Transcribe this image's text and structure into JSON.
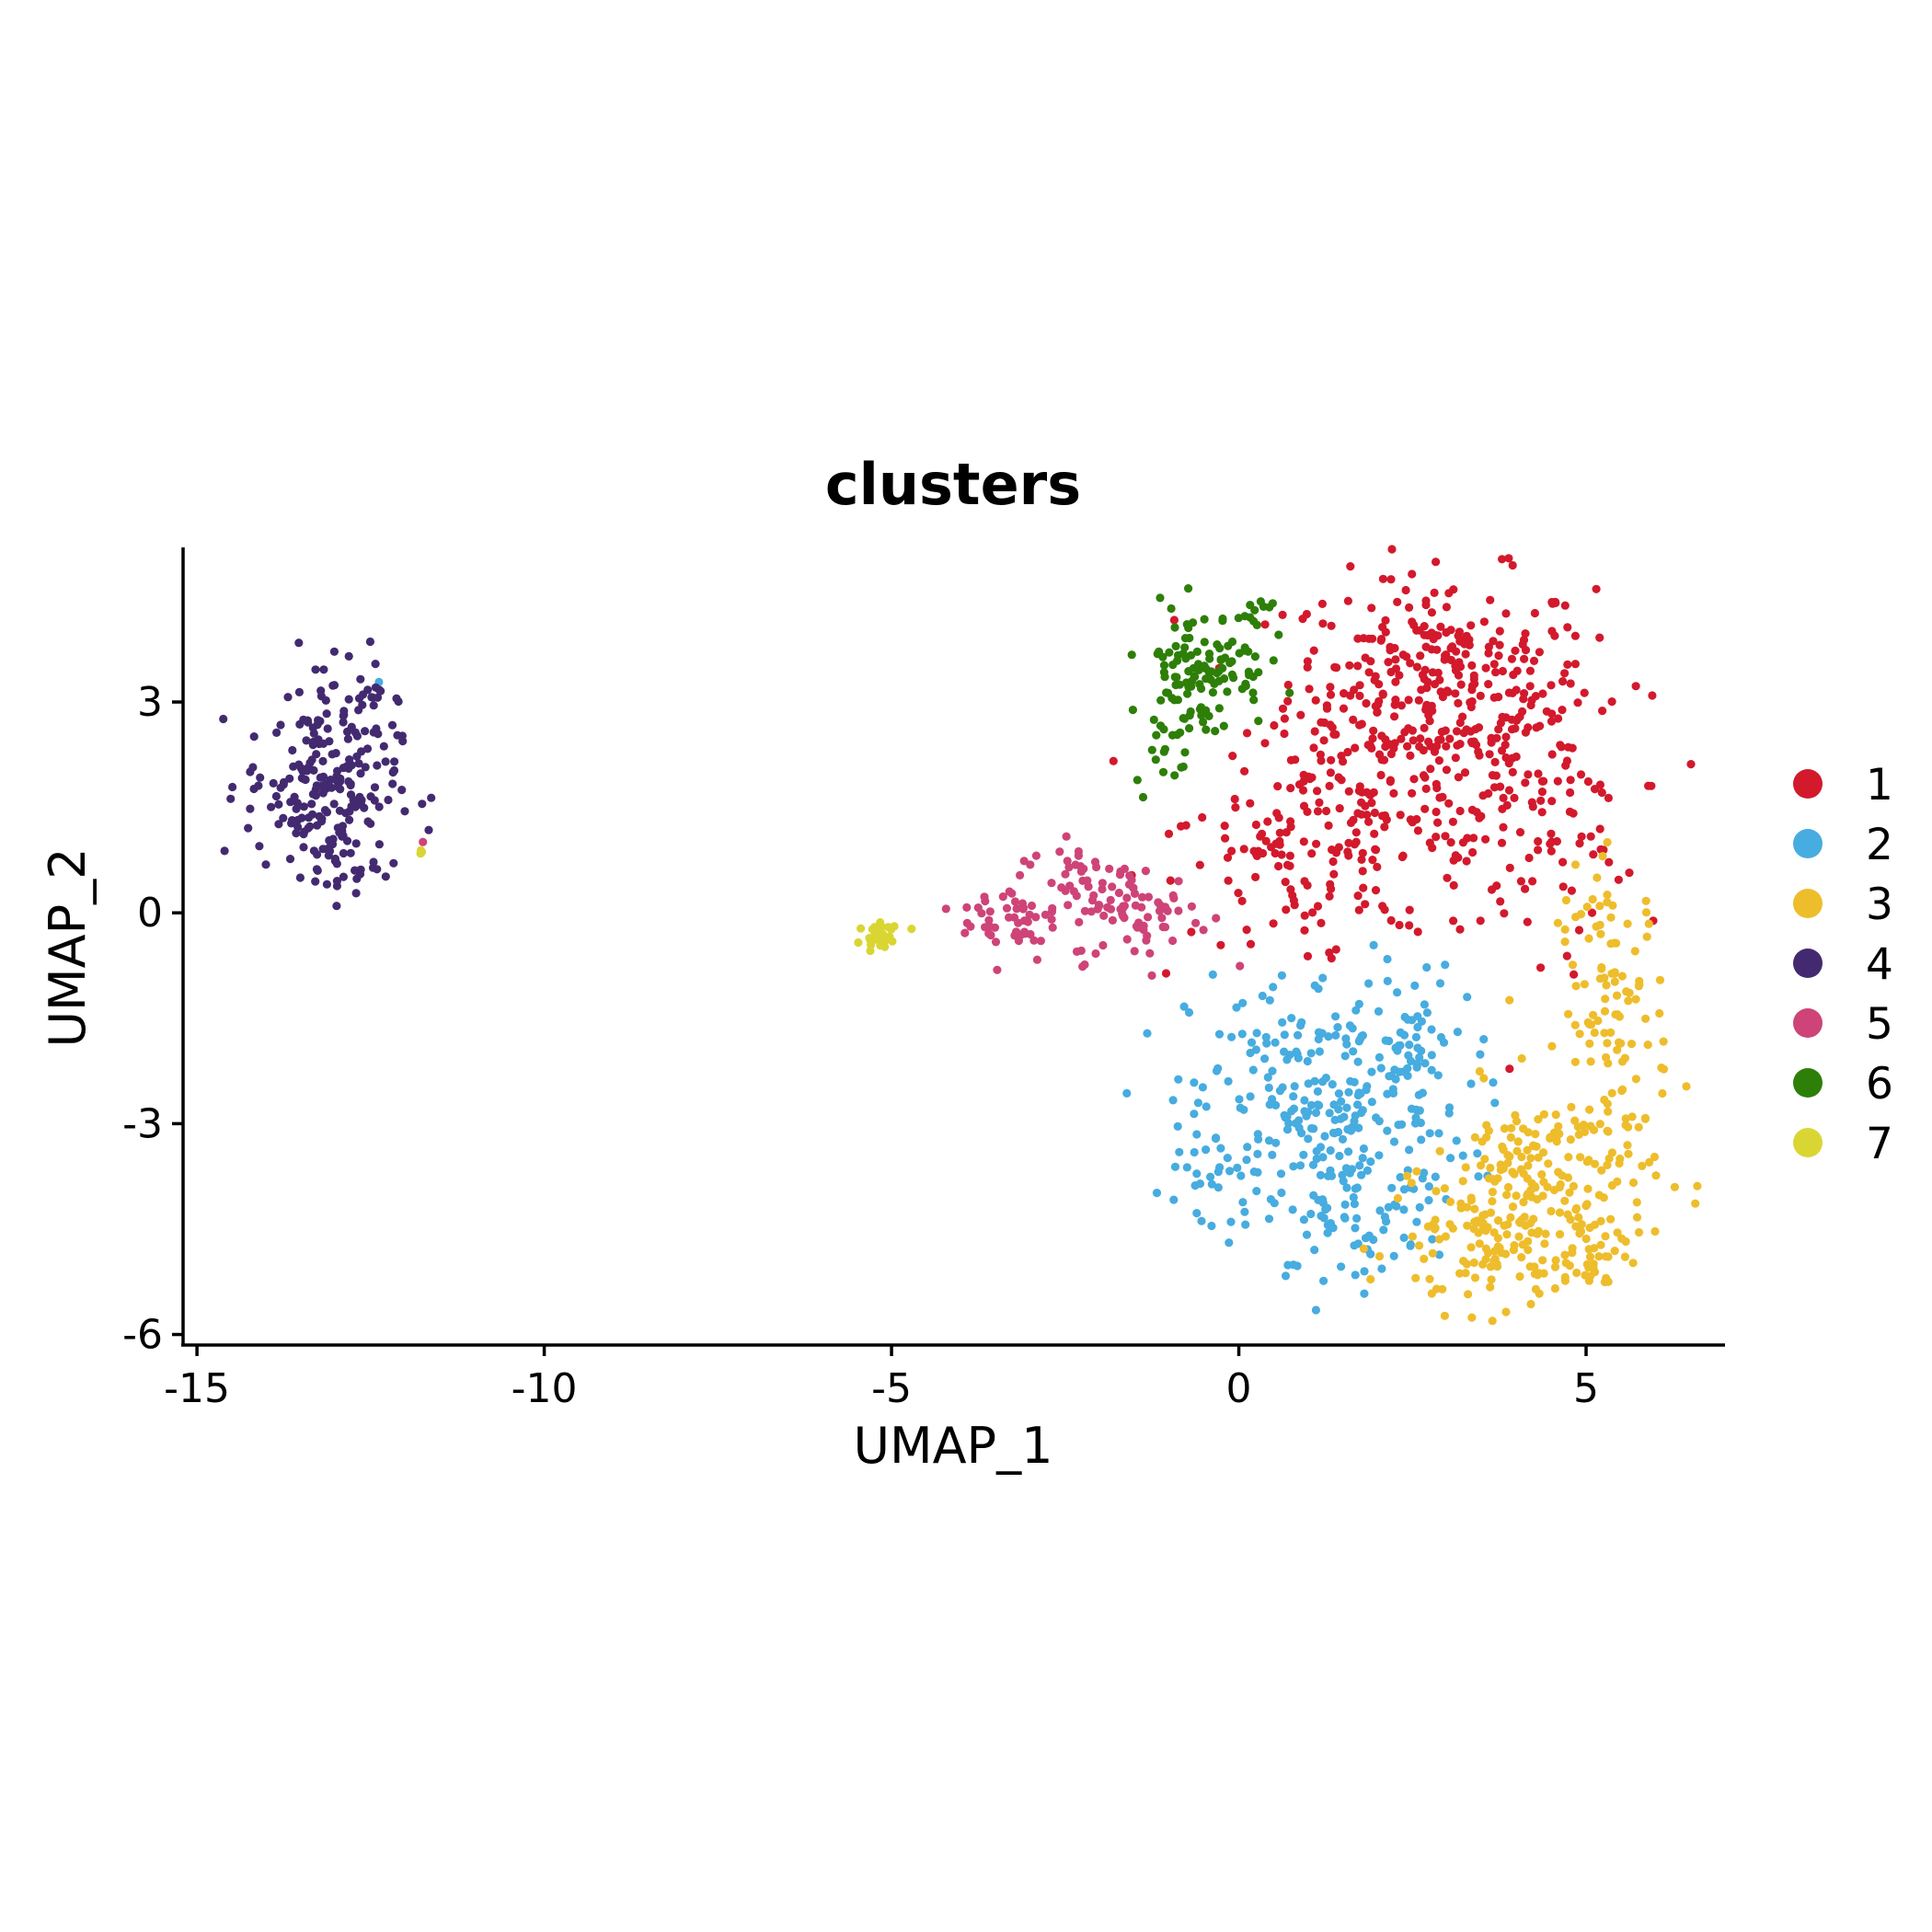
{
  "chart_data": {
    "type": "scatter",
    "title": "clusters",
    "xlabel": "UMAP_1",
    "ylabel": "UMAP_2",
    "xlim": [
      -15.2,
      7.0
    ],
    "ylim": [
      -6.15,
      5.2
    ],
    "xticks": [
      -15,
      -10,
      -5,
      0,
      5
    ],
    "yticks": [
      -6,
      -3,
      0,
      3
    ],
    "grid": false,
    "legend_position": "right",
    "series": [
      {
        "name": "1",
        "color": "#D3192C",
        "clusters": [
          {
            "cx": 2.9,
            "cy": 3.3,
            "sx": 1.1,
            "sy": 0.75,
            "n": 300
          },
          {
            "cx": 1.9,
            "cy": 1.3,
            "sx": 1.3,
            "sy": 0.85,
            "n": 210
          },
          {
            "cx": 4.3,
            "cy": 1.4,
            "sx": 0.7,
            "sy": 0.9,
            "n": 90
          },
          {
            "cx": 0.4,
            "cy": 0.9,
            "sx": 0.55,
            "sy": 0.4,
            "n": 25
          },
          {
            "cx": 1.2,
            "cy": -0.3,
            "sx": 0.25,
            "sy": 0.4,
            "n": 10
          }
        ]
      },
      {
        "name": "2",
        "color": "#47ACDF",
        "clusters": [
          {
            "cx": 1.3,
            "cy": -2.8,
            "sx": 1.0,
            "sy": 1.0,
            "n": 300
          },
          {
            "cx": 1.6,
            "cy": -4.5,
            "sx": 0.6,
            "sy": 0.35,
            "n": 40
          },
          {
            "cx": 2.5,
            "cy": -1.8,
            "sx": 0.3,
            "sy": 0.5,
            "n": 25
          },
          {
            "cx": -0.4,
            "cy": -3.6,
            "sx": 0.3,
            "sy": 0.25,
            "n": 20
          },
          {
            "cx": -12.4,
            "cy": 3.3,
            "sx": 0.03,
            "sy": 0.03,
            "n": 1
          }
        ]
      },
      {
        "name": "3",
        "color": "#EEBD2C",
        "clusters": [
          {
            "cx": 5.4,
            "cy": -1.4,
            "sx": 0.4,
            "sy": 1.0,
            "n": 110
          },
          {
            "cx": 4.4,
            "cy": -3.7,
            "sx": 0.8,
            "sy": 0.6,
            "n": 150
          },
          {
            "cx": 3.6,
            "cy": -4.8,
            "sx": 0.7,
            "sy": 0.45,
            "n": 110
          },
          {
            "cx": 5.1,
            "cy": -4.8,
            "sx": 0.3,
            "sy": 0.3,
            "n": 35
          }
        ]
      },
      {
        "name": "4",
        "color": "#432A70",
        "clusters": [
          {
            "cx": -13.2,
            "cy": 1.8,
            "sx": 0.55,
            "sy": 0.6,
            "n": 190
          },
          {
            "cx": -12.8,
            "cy": 3.2,
            "sx": 0.3,
            "sy": 0.35,
            "n": 30
          },
          {
            "cx": -12.9,
            "cy": 0.7,
            "sx": 0.25,
            "sy": 0.25,
            "n": 25
          }
        ]
      },
      {
        "name": "5",
        "color": "#CE4478",
        "clusters": [
          {
            "cx": -3.3,
            "cy": -0.1,
            "sx": 0.35,
            "sy": 0.3,
            "n": 50
          },
          {
            "cx": -2.3,
            "cy": 0.5,
            "sx": 0.35,
            "sy": 0.35,
            "n": 35
          },
          {
            "cx": -1.4,
            "cy": 0.0,
            "sx": 0.5,
            "sy": 0.35,
            "n": 70
          },
          {
            "cx": -11.75,
            "cy": 1.0,
            "sx": 0.02,
            "sy": 0.02,
            "n": 1
          }
        ]
      },
      {
        "name": "6",
        "color": "#2D7F08",
        "clusters": [
          {
            "cx": -0.5,
            "cy": 3.5,
            "sx": 0.45,
            "sy": 0.45,
            "n": 110
          },
          {
            "cx": -1.0,
            "cy": 2.6,
            "sx": 0.25,
            "sy": 0.4,
            "n": 25
          },
          {
            "cx": 0.2,
            "cy": 4.3,
            "sx": 0.15,
            "sy": 0.15,
            "n": 10
          }
        ]
      },
      {
        "name": "7",
        "color": "#D9D634",
        "clusters": [
          {
            "cx": -5.2,
            "cy": -0.33,
            "sx": 0.1,
            "sy": 0.07,
            "n": 30
          },
          {
            "cx": -4.9,
            "cy": -0.2,
            "sx": 0.15,
            "sy": 0.05,
            "n": 5
          },
          {
            "cx": -11.75,
            "cy": 0.85,
            "sx": 0.02,
            "sy": 0.03,
            "n": 3
          }
        ]
      }
    ]
  }
}
